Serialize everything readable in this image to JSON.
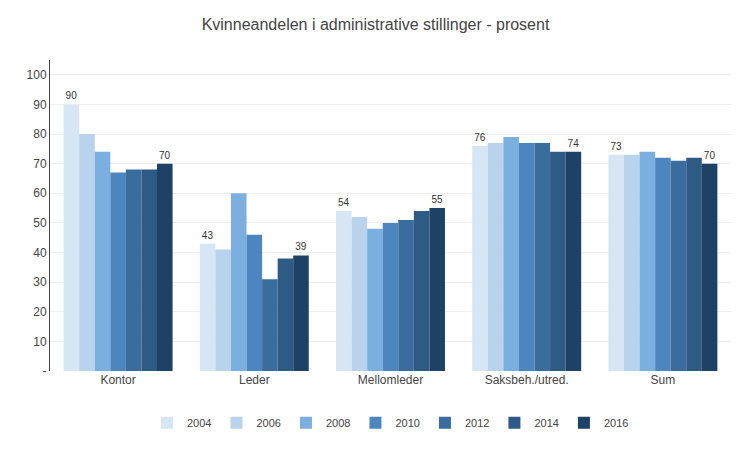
{
  "chart_data": {
    "type": "bar",
    "title": "Kvinneandelen i administrative stillinger - prosent",
    "categories": [
      "Kontor",
      "Leder",
      "Mellomleder",
      "Saksbeh./utred.",
      "Sum"
    ],
    "series": [
      {
        "name": "2004",
        "color": "#d6e6f5",
        "values": [
          90,
          43,
          54,
          76,
          73
        ],
        "data_labels": true
      },
      {
        "name": "2006",
        "color": "#b8d3eb",
        "values": [
          80,
          41,
          52,
          77,
          73
        ]
      },
      {
        "name": "2008",
        "color": "#7aafe0",
        "values": [
          74,
          60,
          48,
          79,
          74
        ]
      },
      {
        "name": "2010",
        "color": "#4d86be",
        "values": [
          67,
          46,
          50,
          77,
          72
        ]
      },
      {
        "name": "2012",
        "color": "#3a6d9e",
        "values": [
          68,
          31,
          51,
          77,
          71
        ]
      },
      {
        "name": "2014",
        "color": "#2e5b86",
        "values": [
          68,
          38,
          54,
          74,
          72
        ]
      },
      {
        "name": "2016",
        "color": "#1e4166",
        "values": [
          70,
          39,
          55,
          74,
          70
        ],
        "data_labels": true
      }
    ],
    "ylim": [
      0,
      105
    ],
    "yticks": [
      {
        "value": 0,
        "label": "-"
      },
      10,
      20,
      30,
      40,
      50,
      60,
      70,
      80,
      90,
      100
    ],
    "grid": true,
    "legend": "bottom"
  }
}
